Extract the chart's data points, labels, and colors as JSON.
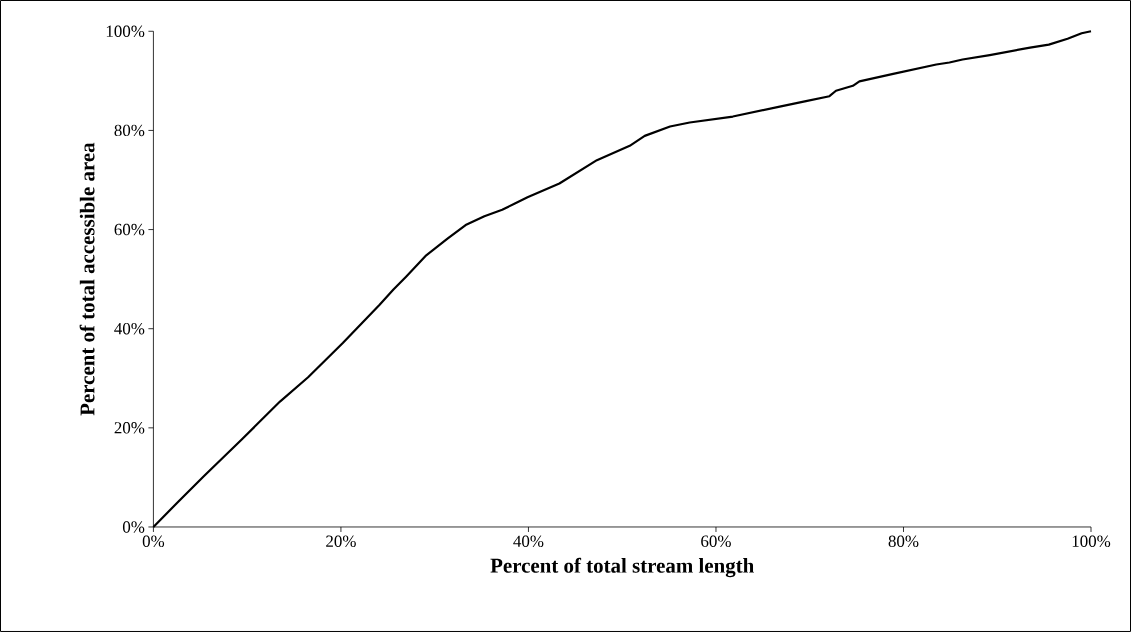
{
  "chart_data": {
    "type": "line",
    "xlabel": "Percent of total stream length",
    "ylabel": "Percent of total accessible area",
    "x": [
      0,
      2.7,
      5.4,
      9.5,
      13.5,
      16.5,
      20.2,
      24.1,
      25.6,
      27,
      29.1,
      31.4,
      33.3,
      35.3,
      37.2,
      38.5,
      39.9,
      43.3,
      47.3,
      50.8,
      52.4,
      55.1,
      57.2,
      61.8,
      66.8,
      69.6,
      72.1,
      72.8,
      74.6,
      75.3,
      78.9,
      83.5,
      84.9,
      86.3,
      89.2,
      93.5,
      95.5,
      97.5,
      99,
      100
    ],
    "series": [
      {
        "color": "#000000",
        "values": [
          0,
          5.2,
          10.3,
          17.8,
          25.3,
          30.2,
          37.1,
          44.8,
          47.9,
          50.6,
          54.8,
          58.2,
          60.9,
          62.7,
          64,
          65.2,
          66.5,
          69.3,
          74,
          76.9,
          78.9,
          80.8,
          81.6,
          82.8,
          84.8,
          85.9,
          86.9,
          88,
          89,
          89.9,
          91.4,
          93.3,
          93.7,
          94.3,
          95.2,
          96.7,
          97.3,
          98.5,
          99.6,
          100
        ]
      }
    ],
    "xlim": [
      0,
      100
    ],
    "ylim": [
      0,
      100
    ],
    "xticks": [
      {
        "value": 0,
        "label": "0%"
      },
      {
        "value": 20,
        "label": "20%"
      },
      {
        "value": 40,
        "label": "40%"
      },
      {
        "value": 60,
        "label": "60%"
      },
      {
        "value": 80,
        "label": "80%"
      },
      {
        "value": 100,
        "label": "100%"
      }
    ],
    "yticks": [
      {
        "value": 0,
        "label": "0%"
      },
      {
        "value": 20,
        "label": "20%"
      },
      {
        "value": 40,
        "label": "40%"
      },
      {
        "value": 60,
        "label": "60%"
      },
      {
        "value": 80,
        "label": "80%"
      },
      {
        "value": 100,
        "label": "100%"
      }
    ],
    "grid": false,
    "marker": "none",
    "line_style": "solid"
  }
}
